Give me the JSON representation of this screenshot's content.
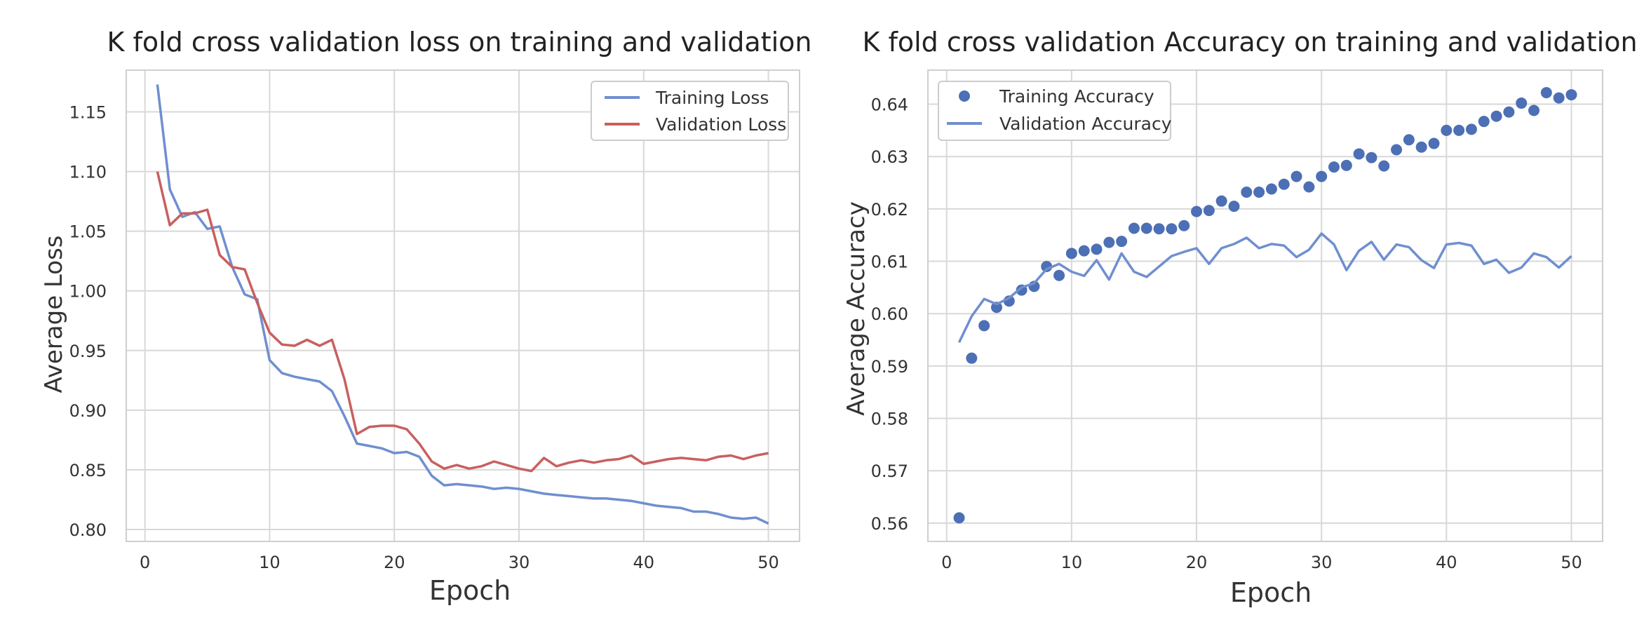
{
  "chart_data": [
    {
      "type": "line",
      "title": "K fold cross validation loss on training and validation",
      "xlabel": "Epoch",
      "ylabel": "Average Loss",
      "xlim": [
        -1.5,
        52.5
      ],
      "ylim": [
        0.79,
        1.185
      ],
      "xticks": [
        0,
        10,
        20,
        30,
        40,
        50
      ],
      "yticks": [
        0.8,
        0.85,
        0.9,
        0.95,
        1.0,
        1.05,
        1.1,
        1.15
      ],
      "ytick_labels": [
        "0.80",
        "0.85",
        "0.90",
        "0.95",
        "1.00",
        "1.05",
        "1.10",
        "1.15"
      ],
      "grid": true,
      "legend_position": "top-right",
      "x": [
        1,
        2,
        3,
        4,
        5,
        6,
        7,
        8,
        9,
        10,
        11,
        12,
        13,
        14,
        15,
        16,
        17,
        18,
        19,
        20,
        21,
        22,
        23,
        24,
        25,
        26,
        27,
        28,
        29,
        30,
        31,
        32,
        33,
        34,
        35,
        36,
        37,
        38,
        39,
        40,
        41,
        42,
        43,
        44,
        45,
        46,
        47,
        48,
        49,
        50
      ],
      "series": [
        {
          "name": "Training Loss",
          "style": "line",
          "color": "#6f8fcf",
          "values": [
            1.173,
            1.085,
            1.062,
            1.066,
            1.052,
            1.054,
            1.02,
            0.997,
            0.993,
            0.942,
            0.931,
            0.928,
            0.926,
            0.924,
            0.916,
            0.895,
            0.872,
            0.87,
            0.868,
            0.864,
            0.865,
            0.861,
            0.845,
            0.837,
            0.838,
            0.837,
            0.836,
            0.834,
            0.835,
            0.834,
            0.832,
            0.83,
            0.829,
            0.828,
            0.827,
            0.826,
            0.826,
            0.825,
            0.824,
            0.822,
            0.82,
            0.819,
            0.818,
            0.815,
            0.815,
            0.813,
            0.81,
            0.809,
            0.81,
            0.805
          ]
        },
        {
          "name": "Validation Loss",
          "style": "line",
          "color": "#c8605f",
          "values": [
            1.1,
            1.055,
            1.065,
            1.065,
            1.068,
            1.03,
            1.02,
            1.018,
            0.99,
            0.965,
            0.955,
            0.954,
            0.959,
            0.954,
            0.959,
            0.926,
            0.88,
            0.886,
            0.887,
            0.887,
            0.884,
            0.872,
            0.857,
            0.851,
            0.854,
            0.851,
            0.853,
            0.857,
            0.854,
            0.851,
            0.849,
            0.86,
            0.853,
            0.856,
            0.858,
            0.856,
            0.858,
            0.859,
            0.862,
            0.855,
            0.857,
            0.859,
            0.86,
            0.859,
            0.858,
            0.861,
            0.862,
            0.859,
            0.862,
            0.864
          ]
        }
      ]
    },
    {
      "type": "scatter",
      "title": "K fold cross validation Accuracy on training and validation",
      "xlabel": "Epoch",
      "ylabel": "Average Accuracy",
      "xlim": [
        -1.5,
        52.5
      ],
      "ylim": [
        0.5565,
        0.6465
      ],
      "xticks": [
        0,
        10,
        20,
        30,
        40,
        50
      ],
      "yticks": [
        0.56,
        0.57,
        0.58,
        0.59,
        0.6,
        0.61,
        0.62,
        0.63,
        0.64
      ],
      "ytick_labels": [
        "0.56",
        "0.57",
        "0.58",
        "0.59",
        "0.60",
        "0.61",
        "0.62",
        "0.63",
        "0.64"
      ],
      "grid": true,
      "legend_position": "top-left",
      "x": [
        1,
        2,
        3,
        4,
        5,
        6,
        7,
        8,
        9,
        10,
        11,
        12,
        13,
        14,
        15,
        16,
        17,
        18,
        19,
        20,
        21,
        22,
        23,
        24,
        25,
        26,
        27,
        28,
        29,
        30,
        31,
        32,
        33,
        34,
        35,
        36,
        37,
        38,
        39,
        40,
        41,
        42,
        43,
        44,
        45,
        46,
        47,
        48,
        49,
        50
      ],
      "series": [
        {
          "name": "Training Accuracy",
          "style": "points",
          "color": "#4c6fb5",
          "values": [
            0.561,
            0.5915,
            0.5977,
            0.6012,
            0.6024,
            0.6045,
            0.6052,
            0.609,
            0.6073,
            0.6115,
            0.612,
            0.6123,
            0.6136,
            0.6138,
            0.6163,
            0.6163,
            0.6162,
            0.6162,
            0.6168,
            0.6195,
            0.6197,
            0.6215,
            0.6205,
            0.6232,
            0.6232,
            0.6238,
            0.6247,
            0.6262,
            0.6242,
            0.6262,
            0.628,
            0.6283,
            0.6305,
            0.6298,
            0.6282,
            0.6313,
            0.6332,
            0.6318,
            0.6325,
            0.635,
            0.635,
            0.6352,
            0.6367,
            0.6377,
            0.6385,
            0.6402,
            0.6388,
            0.6422,
            0.6412,
            0.6418
          ]
        },
        {
          "name": "Validation Accuracy",
          "style": "line",
          "color": "#6f8fcf",
          "values": [
            0.5945,
            0.5995,
            0.6028,
            0.6018,
            0.603,
            0.605,
            0.6058,
            0.6085,
            0.6095,
            0.608,
            0.6072,
            0.6102,
            0.6065,
            0.6115,
            0.608,
            0.607,
            0.609,
            0.611,
            0.6118,
            0.6125,
            0.6095,
            0.6125,
            0.6133,
            0.6145,
            0.6125,
            0.6133,
            0.613,
            0.6108,
            0.6122,
            0.6153,
            0.6132,
            0.6083,
            0.612,
            0.6137,
            0.6103,
            0.6132,
            0.6127,
            0.6102,
            0.6087,
            0.6132,
            0.6135,
            0.613,
            0.6095,
            0.6103,
            0.6078,
            0.6088,
            0.6115,
            0.6108,
            0.6088,
            0.611
          ]
        }
      ]
    }
  ]
}
